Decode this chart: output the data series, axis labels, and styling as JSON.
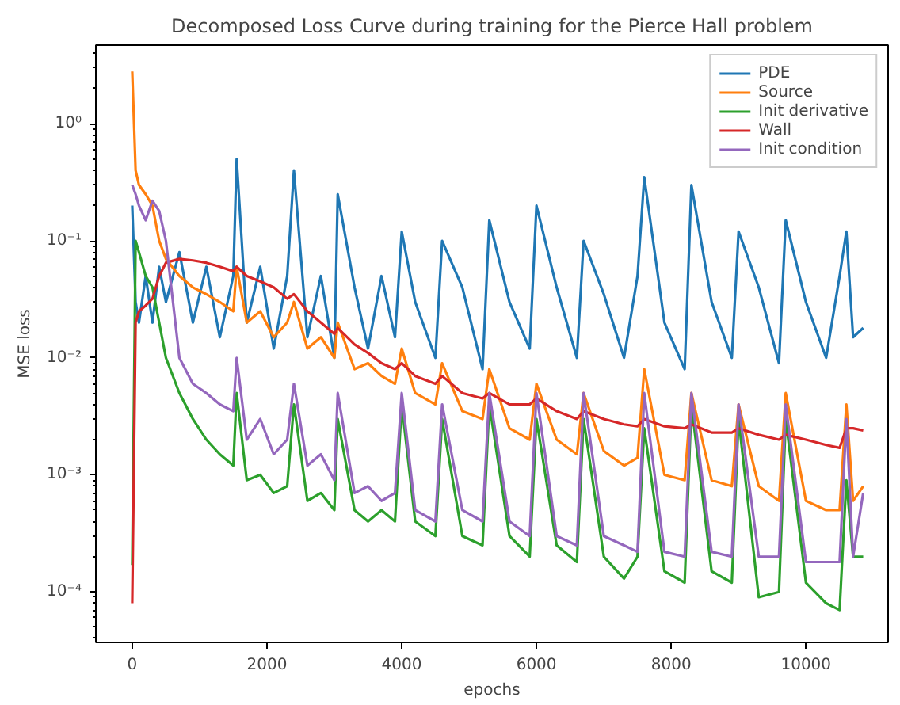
{
  "chart_data": {
    "type": "line",
    "title": "Decomposed Loss Curve during training for the Pierce Hall problem",
    "xlabel": "epochs",
    "ylabel": "MSE loss",
    "log": "y",
    "grid": false,
    "legend": "top right",
    "marker": "none",
    "line_style": "solid",
    "xlim": [
      -540,
      11220
    ],
    "xticks": [
      0,
      2000,
      4000,
      6000,
      8000,
      10000
    ],
    "ylim": [
      3.7e-05,
      4.7
    ],
    "yticks": [
      {
        "value": 0.0001,
        "label": "10⁻⁴"
      },
      {
        "value": 0.001,
        "label": "10⁻³"
      },
      {
        "value": 0.01,
        "label": "10⁻²"
      },
      {
        "value": 0.1,
        "label": "10⁻¹"
      },
      {
        "value": 1,
        "label": "10⁰"
      }
    ],
    "x": [
      0,
      50,
      100,
      200,
      300,
      400,
      500,
      700,
      900,
      1100,
      1300,
      1500,
      1550,
      1700,
      1900,
      2100,
      2300,
      2400,
      2600,
      2800,
      3000,
      3050,
      3300,
      3500,
      3700,
      3900,
      4000,
      4200,
      4500,
      4600,
      4900,
      5200,
      5300,
      5600,
      5900,
      6000,
      6300,
      6600,
      6700,
      7000,
      7300,
      7500,
      7600,
      7900,
      8200,
      8300,
      8600,
      8900,
      9000,
      9300,
      9600,
      9700,
      10000,
      10300,
      10500,
      10600,
      10700,
      10850
    ],
    "series": [
      {
        "name": "PDE",
        "color": "#1f77b4",
        "values": [
          0.2,
          0.03,
          0.02,
          0.05,
          0.02,
          0.06,
          0.03,
          0.08,
          0.02,
          0.06,
          0.015,
          0.05,
          0.5,
          0.02,
          0.06,
          0.012,
          0.05,
          0.4,
          0.015,
          0.05,
          0.01,
          0.25,
          0.04,
          0.012,
          0.05,
          0.015,
          0.12,
          0.03,
          0.01,
          0.1,
          0.04,
          0.008,
          0.15,
          0.03,
          0.012,
          0.2,
          0.04,
          0.01,
          0.1,
          0.035,
          0.01,
          0.05,
          0.35,
          0.02,
          0.008,
          0.3,
          0.03,
          0.01,
          0.12,
          0.04,
          0.009,
          0.15,
          0.03,
          0.01,
          0.05,
          0.12,
          0.015,
          0.018
        ]
      },
      {
        "name": "Source",
        "color": "#ff7f0e",
        "values": [
          2.8,
          0.4,
          0.3,
          0.25,
          0.2,
          0.1,
          0.07,
          0.05,
          0.04,
          0.035,
          0.03,
          0.025,
          0.06,
          0.02,
          0.025,
          0.015,
          0.02,
          0.03,
          0.012,
          0.015,
          0.01,
          0.02,
          0.008,
          0.009,
          0.007,
          0.006,
          0.012,
          0.005,
          0.004,
          0.009,
          0.0035,
          0.003,
          0.008,
          0.0025,
          0.002,
          0.006,
          0.002,
          0.0015,
          0.005,
          0.0016,
          0.0012,
          0.0014,
          0.008,
          0.001,
          0.0009,
          0.005,
          0.0009,
          0.0008,
          0.004,
          0.0008,
          0.0006,
          0.005,
          0.0006,
          0.0005,
          0.0005,
          0.004,
          0.0006,
          0.0008
        ]
      },
      {
        "name": "Init derivative",
        "color": "#2ca02c",
        "values": [
          0.00017,
          0.1,
          0.08,
          0.05,
          0.04,
          0.02,
          0.01,
          0.005,
          0.003,
          0.002,
          0.0015,
          0.0012,
          0.005,
          0.0009,
          0.001,
          0.0007,
          0.0008,
          0.004,
          0.0006,
          0.0007,
          0.0005,
          0.003,
          0.0005,
          0.0004,
          0.0005,
          0.0004,
          0.004,
          0.0004,
          0.0003,
          0.003,
          0.0003,
          0.00025,
          0.004,
          0.0003,
          0.0002,
          0.003,
          0.00025,
          0.00018,
          0.003,
          0.0002,
          0.00013,
          0.0002,
          0.0025,
          0.00015,
          0.00012,
          0.004,
          0.00015,
          0.00012,
          0.003,
          9e-05,
          0.0001,
          0.003,
          0.00012,
          8e-05,
          7e-05,
          0.0009,
          0.0002,
          0.0002
        ]
      },
      {
        "name": "Wall",
        "color": "#d62728",
        "values": [
          8e-05,
          0.02,
          0.025,
          0.028,
          0.032,
          0.05,
          0.065,
          0.07,
          0.068,
          0.065,
          0.06,
          0.055,
          0.06,
          0.05,
          0.045,
          0.04,
          0.032,
          0.035,
          0.025,
          0.02,
          0.016,
          0.018,
          0.013,
          0.011,
          0.009,
          0.008,
          0.009,
          0.007,
          0.006,
          0.007,
          0.005,
          0.0045,
          0.005,
          0.004,
          0.004,
          0.0045,
          0.0035,
          0.003,
          0.0035,
          0.003,
          0.0027,
          0.0026,
          0.003,
          0.0026,
          0.0025,
          0.0027,
          0.0023,
          0.0023,
          0.0025,
          0.0022,
          0.002,
          0.0022,
          0.002,
          0.0018,
          0.0017,
          0.0025,
          0.0025,
          0.0024
        ]
      },
      {
        "name": "Init condition",
        "color": "#9467bd",
        "values": [
          0.3,
          0.25,
          0.2,
          0.15,
          0.22,
          0.18,
          0.1,
          0.01,
          0.006,
          0.005,
          0.004,
          0.0035,
          0.01,
          0.002,
          0.003,
          0.0015,
          0.002,
          0.006,
          0.0012,
          0.0015,
          0.0009,
          0.005,
          0.0007,
          0.0008,
          0.0006,
          0.0007,
          0.005,
          0.0005,
          0.0004,
          0.004,
          0.0005,
          0.0004,
          0.005,
          0.0004,
          0.0003,
          0.005,
          0.0003,
          0.00025,
          0.005,
          0.0003,
          0.00025,
          0.00022,
          0.005,
          0.00022,
          0.0002,
          0.005,
          0.00022,
          0.0002,
          0.004,
          0.0002,
          0.0002,
          0.004,
          0.00018,
          0.00018,
          0.00018,
          0.003,
          0.0002,
          0.0007
        ]
      }
    ]
  }
}
